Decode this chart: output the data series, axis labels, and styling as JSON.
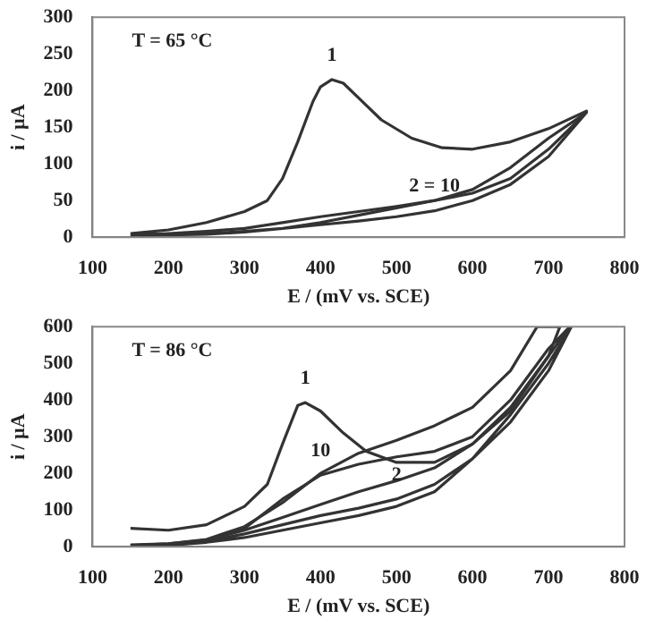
{
  "chart_data": [
    {
      "type": "line",
      "xlabel": "E / (mV vs. SCE)",
      "ylabel": "i / µA",
      "xlim": [
        100,
        800
      ],
      "ylim": [
        0,
        300
      ],
      "xticks": [
        100,
        200,
        300,
        400,
        500,
        600,
        700,
        800
      ],
      "yticks": [
        0,
        50,
        100,
        150,
        200,
        250,
        300
      ],
      "marker": "none",
      "line_style": "solid",
      "annotations": [
        "T = 65 °C",
        {
          "text": "1",
          "x": 415,
          "y": 215
        },
        {
          "text": "2 = 10",
          "x": 550,
          "y": 36
        }
      ],
      "series": [
        {
          "color": "#333333",
          "x": [
            150,
            200,
            250,
            300,
            330,
            350,
            370,
            390,
            400,
            415,
            430,
            450,
            480,
            520,
            560,
            600,
            650,
            700,
            750,
            740,
            700,
            650,
            600,
            550,
            500,
            450,
            400,
            350,
            300,
            250,
            200,
            150
          ],
          "values": [
            5,
            10,
            20,
            35,
            50,
            80,
            130,
            185,
            205,
            215,
            210,
            190,
            160,
            135,
            122,
            120,
            130,
            148,
            172,
            160,
            120,
            80,
            60,
            50,
            42,
            35,
            28,
            20,
            12,
            8,
            5,
            3
          ]
        },
        {
          "color": "#333333",
          "x": [
            150,
            200,
            250,
            300,
            350,
            400,
            450,
            500,
            550,
            600,
            650,
            700,
            750,
            700,
            650,
            600,
            550,
            500,
            450,
            400,
            350,
            300,
            250,
            200,
            150
          ],
          "values": [
            3,
            4,
            5,
            8,
            12,
            17,
            22,
            28,
            36,
            50,
            72,
            110,
            170,
            135,
            95,
            65,
            50,
            40,
            30,
            20,
            12,
            7,
            4,
            3,
            2
          ]
        }
      ]
    },
    {
      "type": "line",
      "xlabel": "E / (mV vs. SCE)",
      "ylabel": "i / µA",
      "xlim": [
        100,
        800
      ],
      "ylim": [
        0,
        600
      ],
      "xticks": [
        100,
        200,
        300,
        400,
        500,
        600,
        700,
        800
      ],
      "yticks": [
        0,
        100,
        200,
        300,
        400,
        500,
        600
      ],
      "marker": "none",
      "line_style": "solid",
      "annotations": [
        "T = 86 °C",
        {
          "text": "1",
          "x": 380,
          "y": 393
        },
        {
          "text": "10",
          "x": 400,
          "y": 195
        },
        {
          "text": "2",
          "x": 500,
          "y": 130
        }
      ],
      "series": [
        {
          "color": "#333333",
          "x": [
            150,
            200,
            250,
            300,
            330,
            350,
            370,
            380,
            400,
            430,
            460,
            500,
            550,
            600,
            650,
            700,
            715,
            685,
            650,
            600,
            550,
            500,
            450,
            400,
            350,
            300,
            250,
            200,
            150
          ],
          "values": [
            50,
            45,
            60,
            110,
            170,
            280,
            385,
            393,
            370,
            310,
            260,
            230,
            230,
            280,
            370,
            520,
            600,
            600,
            480,
            380,
            330,
            290,
            255,
            200,
            120,
            55,
            20,
            8,
            5
          ]
        },
        {
          "color": "#333333",
          "x": [
            150,
            200,
            250,
            300,
            350,
            400,
            450,
            500,
            550,
            600,
            650,
            700,
            728,
            700,
            650,
            600,
            550,
            500,
            450,
            400,
            350,
            300,
            250,
            200,
            150
          ],
          "values": [
            3,
            8,
            18,
            50,
            130,
            195,
            225,
            245,
            260,
            300,
            400,
            540,
            600,
            520,
            380,
            280,
            215,
            180,
            150,
            115,
            80,
            45,
            18,
            6,
            2
          ]
        },
        {
          "color": "#333333",
          "x": [
            150,
            200,
            250,
            300,
            350,
            400,
            450,
            500,
            550,
            600,
            650,
            700,
            730,
            700,
            650,
            600,
            550,
            500,
            450,
            400,
            350,
            300,
            250,
            200,
            150
          ],
          "values": [
            2,
            5,
            15,
            35,
            60,
            85,
            105,
            130,
            170,
            240,
            340,
            480,
            600,
            500,
            360,
            240,
            150,
            110,
            85,
            65,
            45,
            25,
            12,
            4,
            1
          ]
        }
      ]
    }
  ]
}
